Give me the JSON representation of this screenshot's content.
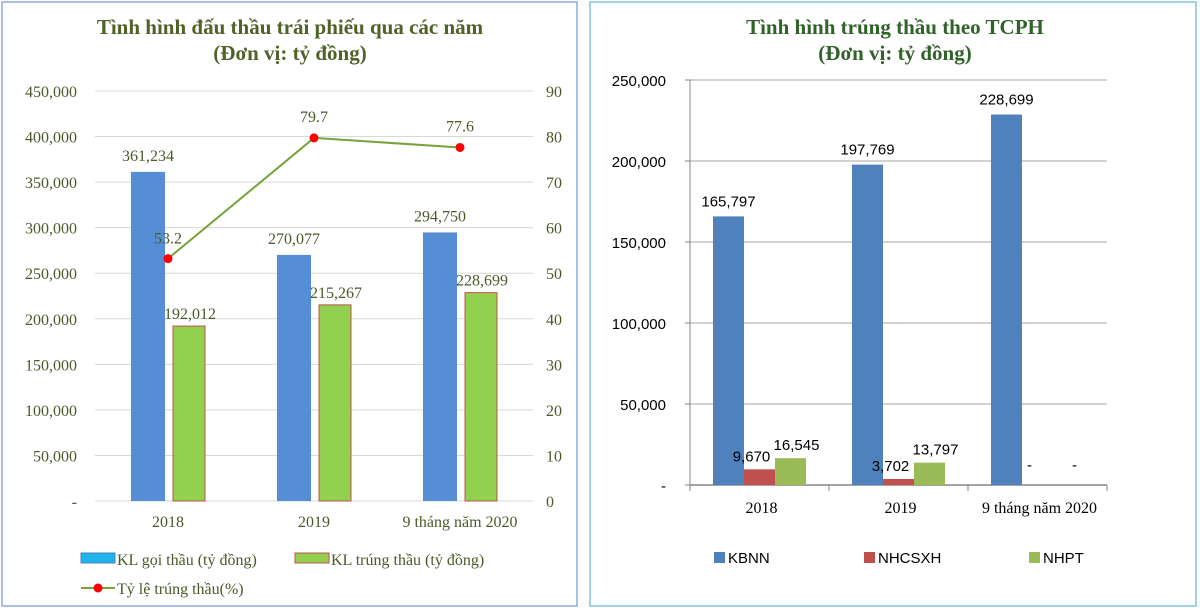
{
  "chart_data": [
    {
      "type": "bar",
      "title": "Tình hình đấu thầu trái phiếu qua các năm",
      "subtitle": "(Đơn vị: tỷ đồng)",
      "categories": [
        "2018",
        "2019",
        "9 tháng năm 2020"
      ],
      "series": [
        {
          "name": "KL gọi thầu (tỷ đồng)",
          "type": "bar",
          "axis": "left",
          "values": [
            361234,
            270077,
            294750
          ],
          "labels": [
            "361,234",
            "270,077",
            "294,750"
          ],
          "color": "#558ed5"
        },
        {
          "name": "KL trúng thầu (tỷ đồng)",
          "type": "bar",
          "axis": "left",
          "values": [
            192012,
            215267,
            228699
          ],
          "labels": [
            "192,012",
            "215,267",
            "228,699"
          ],
          "color": "#92d050",
          "border": "#c0504d"
        },
        {
          "name": "Tỷ lệ trúng thầu(%)",
          "type": "line",
          "axis": "right",
          "values": [
            53.2,
            79.7,
            77.6
          ],
          "labels": [
            "53.2",
            "79.7",
            "77.6"
          ],
          "color": "#77a33a",
          "marker": "#ff0000"
        }
      ],
      "y_left": {
        "range": [
          0,
          450000
        ],
        "ticks": [
          "-",
          "50,000",
          "100,000",
          "150,000",
          "200,000",
          "250,000",
          "300,000",
          "350,000",
          "400,000",
          "450,000"
        ]
      },
      "y_right": {
        "range": [
          0,
          90
        ],
        "ticks": [
          "0",
          "10",
          "20",
          "30",
          "40",
          "50",
          "60",
          "70",
          "80",
          "90"
        ]
      },
      "legend": {
        "items": [
          "KL gọi thầu (tỷ đồng)",
          "KL trúng thầu (tỷ đồng)",
          "Tỷ lệ trúng thầu(%)"
        ],
        "position": "bottom"
      },
      "grid": true
    },
    {
      "type": "bar",
      "title": "Tình hình trúng thầu theo TCPH",
      "subtitle": "(Đơn vị: tỷ đồng)",
      "categories": [
        "2018",
        "2019",
        "9 tháng năm 2020"
      ],
      "series": [
        {
          "name": "KBNN",
          "values": [
            165797,
            197769,
            228699
          ],
          "labels": [
            "165,797",
            "197,769",
            "228,699"
          ],
          "color": "#4f81bd"
        },
        {
          "name": "NHCSXH",
          "values": [
            9670,
            3702,
            0
          ],
          "labels": [
            "9,670",
            "3,702",
            "-"
          ],
          "color": "#c0504d"
        },
        {
          "name": "NHPT",
          "values": [
            16545,
            13797,
            0
          ],
          "labels": [
            "16,545",
            "13,797",
            "-"
          ],
          "color": "#9bbb59"
        }
      ],
      "y": {
        "range": [
          0,
          250000
        ],
        "ticks": [
          "-",
          "50,000",
          "100,000",
          "150,000",
          "200,000",
          "250,000"
        ]
      },
      "legend": {
        "items": [
          "KBNN",
          "NHCSXH",
          "NHPT"
        ],
        "position": "bottom"
      },
      "grid": true
    }
  ]
}
